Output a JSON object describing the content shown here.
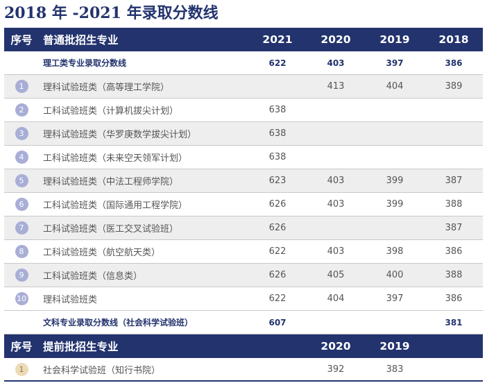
{
  "title": "2018 年 -2021 年录取分数线",
  "colors": {
    "header_bg": "#23336e",
    "badge": "#a8aed6",
    "badge_early": "#ecdcb6",
    "row_shade": "#eeeeee"
  },
  "regular": {
    "header": {
      "no": "序号",
      "name": "普通批招生专业",
      "years": [
        "2021",
        "2020",
        "2019",
        "2018"
      ]
    },
    "science_summary": {
      "label": "理工类专业录取分数线",
      "scores": [
        "622",
        "403",
        "397",
        "386"
      ]
    },
    "rows": [
      {
        "no": "1",
        "name": "理科试验班类（高等理工学院）",
        "scores": [
          "",
          "413",
          "404",
          "389"
        ]
      },
      {
        "no": "2",
        "name": "工科试验班类（计算机拔尖计划）",
        "scores": [
          "638",
          "",
          "",
          ""
        ]
      },
      {
        "no": "3",
        "name": "理科试验班类（华罗庚数学拔尖计划）",
        "scores": [
          "638",
          "",
          "",
          ""
        ]
      },
      {
        "no": "4",
        "name": "工科试验班类（未来空天领军计划）",
        "scores": [
          "638",
          "",
          "",
          ""
        ]
      },
      {
        "no": "5",
        "name": "理科试验班类（中法工程师学院）",
        "scores": [
          "623",
          "403",
          "399",
          "387"
        ]
      },
      {
        "no": "6",
        "name": "工科试验班类（国际通用工程学院）",
        "scores": [
          "626",
          "403",
          "399",
          "388"
        ]
      },
      {
        "no": "7",
        "name": "工科试验班类（医工交叉试验班）",
        "scores": [
          "626",
          "",
          "",
          "387"
        ]
      },
      {
        "no": "8",
        "name": "工科试验班类（航空航天类）",
        "scores": [
          "622",
          "403",
          "398",
          "386"
        ]
      },
      {
        "no": "9",
        "name": "工科试验班类（信息类）",
        "scores": [
          "626",
          "405",
          "400",
          "388"
        ]
      },
      {
        "no": "10",
        "name": "理科试验班类",
        "scores": [
          "622",
          "404",
          "397",
          "386"
        ]
      }
    ],
    "liberal_summary": {
      "label": "文科专业录取分数线（社会科学试验班）",
      "scores": [
        "607",
        "",
        "",
        "381"
      ]
    }
  },
  "early": {
    "header": {
      "no": "序号",
      "name": "提前批招生专业",
      "years": [
        "2020",
        "2019"
      ]
    },
    "rows": [
      {
        "no": "1",
        "name": "社会科学试验班（知行书院）",
        "scores": [
          "392",
          "383"
        ]
      }
    ]
  }
}
